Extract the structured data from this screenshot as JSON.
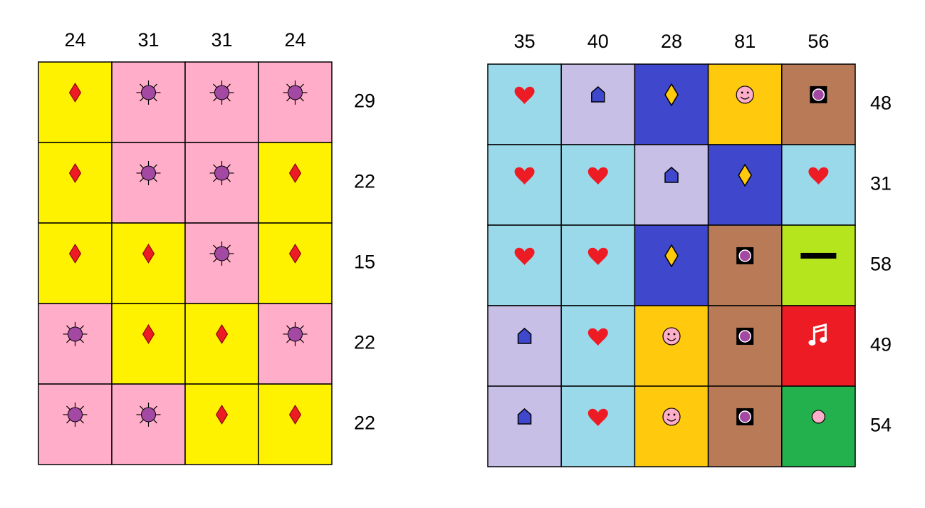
{
  "left_grid": {
    "column_sums": [
      24,
      31,
      31,
      24
    ],
    "row_sums": [
      29,
      22,
      15,
      22,
      22
    ]
  },
  "right_grid": {
    "column_sums": [
      35,
      40,
      28,
      81,
      56
    ],
    "row_sums": [
      48,
      31,
      58,
      49,
      54
    ]
  }
}
